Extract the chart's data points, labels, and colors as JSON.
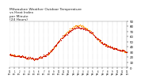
{
  "title": "Milwaukee Weather Outdoor Temperature\nvs Heat Index\nper Minute\n(24 Hours)",
  "title_fontsize": 3.2,
  "background_color": "#ffffff",
  "temp_color": "#cc0000",
  "heat_color": "#ff9900",
  "ylim": [
    0,
    90
  ],
  "xlim": [
    0,
    1440
  ],
  "yticks": [
    0,
    10,
    20,
    30,
    40,
    50,
    60,
    70,
    80,
    90
  ],
  "ytick_fontsize": 2.8,
  "xtick_fontsize": 1.8,
  "grid_color": "#aaaaaa",
  "dot_size": 0.8,
  "num_points": 1440,
  "temp_profile": [
    [
      0,
      25
    ],
    [
      60,
      23
    ],
    [
      120,
      22
    ],
    [
      180,
      20
    ],
    [
      240,
      18
    ],
    [
      300,
      16
    ],
    [
      360,
      18
    ],
    [
      420,
      22
    ],
    [
      480,
      28
    ],
    [
      540,
      38
    ],
    [
      600,
      50
    ],
    [
      660,
      60
    ],
    [
      720,
      68
    ],
    [
      780,
      74
    ],
    [
      840,
      78
    ],
    [
      900,
      76
    ],
    [
      960,
      72
    ],
    [
      1020,
      65
    ],
    [
      1080,
      55
    ],
    [
      1140,
      47
    ],
    [
      1200,
      42
    ],
    [
      1260,
      38
    ],
    [
      1320,
      35
    ],
    [
      1380,
      32
    ],
    [
      1440,
      30
    ]
  ],
  "heat_profile": [
    [
      0,
      25
    ],
    [
      60,
      23
    ],
    [
      120,
      22
    ],
    [
      180,
      20
    ],
    [
      240,
      18
    ],
    [
      300,
      16
    ],
    [
      360,
      18
    ],
    [
      420,
      22
    ],
    [
      480,
      28
    ],
    [
      540,
      38
    ],
    [
      600,
      50
    ],
    [
      660,
      62
    ],
    [
      720,
      71
    ],
    [
      780,
      78
    ],
    [
      840,
      82
    ],
    [
      900,
      80
    ],
    [
      960,
      74
    ],
    [
      1020,
      66
    ],
    [
      1080,
      55
    ],
    [
      1140,
      47
    ],
    [
      1200,
      42
    ],
    [
      1260,
      38
    ],
    [
      1320,
      35
    ],
    [
      1380,
      32
    ],
    [
      1440,
      30
    ]
  ]
}
